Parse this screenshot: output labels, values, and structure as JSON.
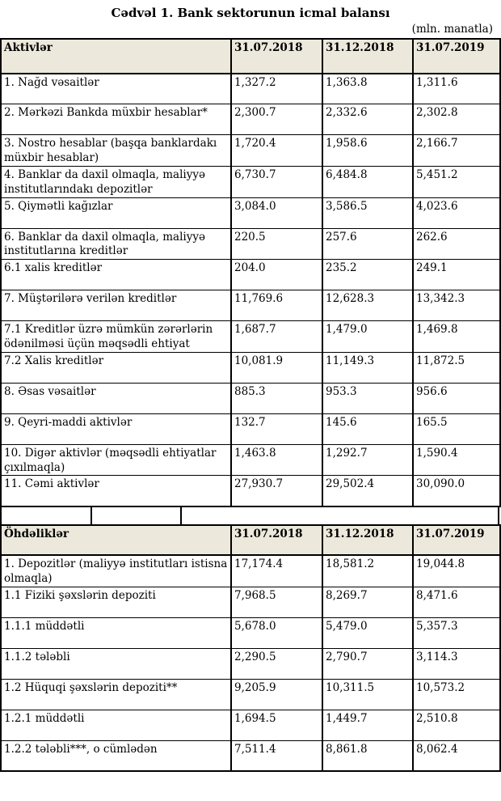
{
  "title": "Cədvəl 1. Bank sektorunun icmal balansı",
  "unit_note": "(mln. manatla)",
  "columns": [
    "31.07.2018",
    "31.12.2018",
    "31.07.2019"
  ],
  "assets": {
    "header": "Aktivlər",
    "rows": [
      {
        "label": "1. Nağd vəsaitlər",
        "values": [
          "1,327.2",
          "1,363.8",
          "1,311.6"
        ]
      },
      {
        "label": "2. Mərkəzi Bankda müxbir hesablar*",
        "values": [
          "2,300.7",
          "2,332.6",
          "2,302.8"
        ]
      },
      {
        "label": "3. Nostro hesablar (başqa banklardakı müxbir hesablar)",
        "values": [
          "1,720.4",
          "1,958.6",
          "2,166.7"
        ]
      },
      {
        "label": "4. Banklar da daxil olmaqla, maliyyə institutlarındakı depozitlər",
        "values": [
          "6,730.7",
          "6,484.8",
          "5,451.2"
        ]
      },
      {
        "label": "5. Qiymətli kağızlar",
        "values": [
          "3,084.0",
          "3,586.5",
          "4,023.6"
        ]
      },
      {
        "label": "6. Banklar da daxil olmaqla, maliyyə institutlarına kreditlər",
        "values": [
          "220.5",
          "257.6",
          "262.6"
        ]
      },
      {
        "label": "6.1 xalis kreditlər",
        "values": [
          "204.0",
          "235.2",
          "249.1"
        ]
      },
      {
        "label": "7. Müştərilərə verilən kreditlər",
        "values": [
          "11,769.6",
          "12,628.3",
          "13,342.3"
        ]
      },
      {
        "label": "7.1 Kreditlər üzrə mümkün zərərlərin ödənilməsi üçün məqsədli ehtiyat",
        "values": [
          "1,687.7",
          "1,479.0",
          "1,469.8"
        ]
      },
      {
        "label": "7.2 Xalis kreditlər",
        "values": [
          "10,081.9",
          "11,149.3",
          "11,872.5"
        ]
      },
      {
        "label": "8. Əsas vəsaitlər",
        "values": [
          "885.3",
          "953.3",
          "956.6"
        ]
      },
      {
        "label": "9. Qeyri-maddi aktivlər",
        "values": [
          "132.7",
          "145.6",
          "165.5"
        ]
      },
      {
        "label": "10. Digər aktivlər (məqsədli ehtiyatlar çıxılmaqla)",
        "values": [
          "1,463.8",
          "1,292.7",
          "1,590.4"
        ]
      },
      {
        "label": "11. Cəmi aktivlər",
        "values": [
          "27,930.7",
          "29,502.4",
          "30,090.0"
        ]
      }
    ]
  },
  "liabilities": {
    "header": "Öhdəliklər",
    "rows": [
      {
        "label": "1. Depozitlər (maliyyə institutları istisna olmaqla)",
        "values": [
          "17,174.4",
          "18,581.2",
          "19,044.8"
        ]
      },
      {
        "label": "1.1 Fiziki şəxslərin depoziti",
        "values": [
          "7,968.5",
          "8,269.7",
          "8,471.6"
        ]
      },
      {
        "label": "1.1.1 müddətli",
        "values": [
          "5,678.0",
          "5,479.0",
          "5,357.3"
        ]
      },
      {
        "label": "1.1.2 tələbli",
        "values": [
          "2,290.5",
          "2,790.7",
          "3,114.3"
        ]
      },
      {
        "label": "1.2 Hüquqi şəxslərin depoziti**",
        "values": [
          "9,205.9",
          "10,311.5",
          "10,573.2"
        ]
      },
      {
        "label": "1.2.1 müddətli",
        "values": [
          "1,694.5",
          "1,449.7",
          "2,510.8"
        ]
      },
      {
        "label": "1.2.2 tələbli***, o cümlədən",
        "values": [
          "7,511.4",
          "8,861.8",
          "8,062.4"
        ]
      }
    ]
  },
  "colors": {
    "header_bg": "#ECE9DC",
    "border": "#000000",
    "text": "#000000"
  }
}
